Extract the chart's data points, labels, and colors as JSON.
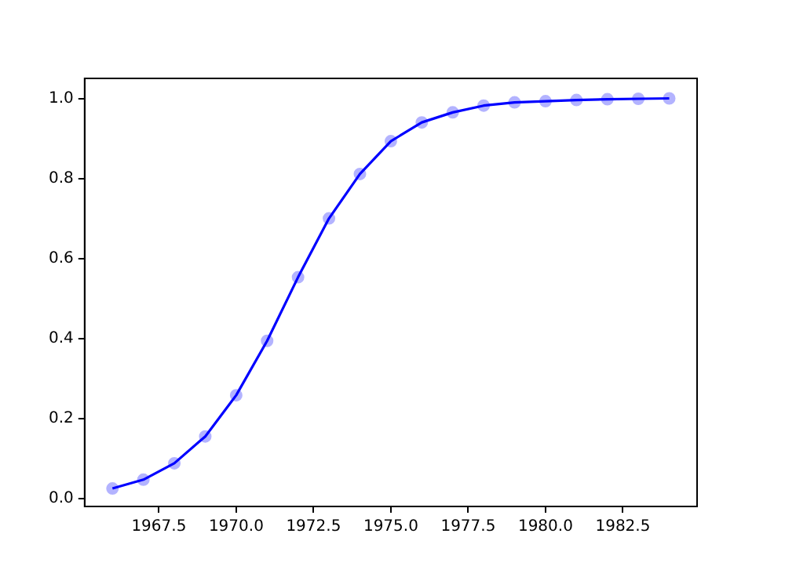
{
  "chart_data": {
    "type": "line",
    "x": [
      1966,
      1967,
      1968,
      1969,
      1970,
      1971,
      1972,
      1973,
      1974,
      1975,
      1976,
      1977,
      1978,
      1979,
      1980,
      1981,
      1982,
      1983,
      1984
    ],
    "series": [
      {
        "type": "scatter",
        "color": "#b3b3ff",
        "marker": "circle",
        "values": [
          0.025,
          0.047,
          0.088,
          0.155,
          0.258,
          0.394,
          0.553,
          0.7,
          0.811,
          0.893,
          0.94,
          0.965,
          0.982,
          0.99,
          0.993,
          0.996,
          0.998,
          0.999,
          1.0
        ]
      },
      {
        "type": "line",
        "color": "#0000ff",
        "marker": "none",
        "values": [
          0.025,
          0.047,
          0.088,
          0.155,
          0.258,
          0.394,
          0.553,
          0.7,
          0.811,
          0.893,
          0.94,
          0.965,
          0.982,
          0.99,
          0.993,
          0.996,
          0.998,
          0.999,
          1.0
        ]
      }
    ],
    "xlim": [
      1965.1,
      1984.9
    ],
    "xticks": [
      {
        "value": 1967.5,
        "label": "1967.5"
      },
      {
        "value": 1970,
        "label": "1970.0"
      },
      {
        "value": 1972.5,
        "label": "1972.5"
      },
      {
        "value": 1975,
        "label": "1975.0"
      },
      {
        "value": 1977.5,
        "label": "1977.5"
      },
      {
        "value": 1980,
        "label": "1980.0"
      },
      {
        "value": 1982.5,
        "label": "1982.5"
      }
    ],
    "ylim": [
      -0.02,
      1.05
    ],
    "yticks": [
      {
        "value": 0,
        "label": "0.0"
      },
      {
        "value": 0.2,
        "label": "0.2"
      },
      {
        "value": 0.4,
        "label": "0.4"
      },
      {
        "value": 0.6,
        "label": "0.6"
      },
      {
        "value": 0.8,
        "label": "0.8"
      },
      {
        "value": 1,
        "label": "1.0"
      }
    ],
    "grid": false,
    "legend": false
  }
}
